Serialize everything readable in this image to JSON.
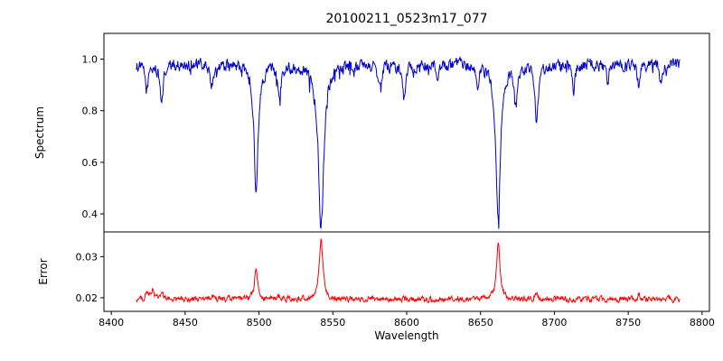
{
  "figure": {
    "title": "20100211_0523m17_077"
  },
  "chart_data": [
    {
      "type": "line",
      "name": "spectrum",
      "ylabel": "Spectrum",
      "color": "#0000cc",
      "xlim": [
        8395,
        8805
      ],
      "ylim": [
        0.33,
        1.1
      ],
      "x_range": [
        8417,
        8785
      ],
      "yticks": [
        0.4,
        0.6,
        0.8,
        1.0
      ],
      "continuum": 0.98,
      "noise_amplitude": 0.04,
      "grid": false,
      "legend": "none",
      "absorption_lines": [
        {
          "center": 8424,
          "depth": 0.1,
          "width": 1.2
        },
        {
          "center": 8434,
          "depth": 0.14,
          "width": 1.4
        },
        {
          "center": 8468,
          "depth": 0.08,
          "width": 1.2
        },
        {
          "center": 8498,
          "depth": 0.5,
          "width": 1.6
        },
        {
          "center": 8514,
          "depth": 0.11,
          "width": 1.2
        },
        {
          "center": 8542,
          "depth": 0.62,
          "width": 2.2
        },
        {
          "center": 8582,
          "depth": 0.09,
          "width": 1.2
        },
        {
          "center": 8598,
          "depth": 0.13,
          "width": 1.3
        },
        {
          "center": 8621,
          "depth": 0.07,
          "width": 1.0
        },
        {
          "center": 8648,
          "depth": 0.07,
          "width": 1.0
        },
        {
          "center": 8662,
          "depth": 0.59,
          "width": 1.9
        },
        {
          "center": 8674,
          "depth": 0.15,
          "width": 1.2
        },
        {
          "center": 8688,
          "depth": 0.21,
          "width": 1.4
        },
        {
          "center": 8713,
          "depth": 0.1,
          "width": 1.1
        },
        {
          "center": 8736,
          "depth": 0.08,
          "width": 1.0
        },
        {
          "center": 8757,
          "depth": 0.08,
          "width": 1.0
        },
        {
          "center": 8772,
          "depth": 0.07,
          "width": 1.0
        }
      ]
    },
    {
      "type": "line",
      "name": "error",
      "ylabel": "Error",
      "xlabel": "Wavelength",
      "color": "#ff0000",
      "xlim": [
        8395,
        8805
      ],
      "ylim": [
        0.0167,
        0.036
      ],
      "x_range": [
        8417,
        8785
      ],
      "xticks": [
        8400,
        8450,
        8500,
        8550,
        8600,
        8650,
        8700,
        8750,
        8800
      ],
      "yticks": [
        0.02,
        0.03
      ],
      "baseline": 0.0196,
      "noise_amplitude": 0.0012,
      "grid": false,
      "legend": "none",
      "peaks": [
        {
          "center": 8424,
          "amplitude": 0.0018,
          "width": 1.1
        },
        {
          "center": 8428,
          "amplitude": 0.0024,
          "width": 1.0
        },
        {
          "center": 8434,
          "amplitude": 0.0015,
          "width": 1.1
        },
        {
          "center": 8468,
          "amplitude": 0.0008,
          "width": 1.0
        },
        {
          "center": 8498,
          "amplitude": 0.0072,
          "width": 1.3
        },
        {
          "center": 8514,
          "amplitude": 0.0009,
          "width": 1.0
        },
        {
          "center": 8542,
          "amplitude": 0.0142,
          "width": 1.5
        },
        {
          "center": 8662,
          "amplitude": 0.0135,
          "width": 1.4
        },
        {
          "center": 8688,
          "amplitude": 0.0017,
          "width": 1.2
        },
        {
          "center": 8757,
          "amplitude": 0.0012,
          "width": 1.0
        }
      ]
    }
  ]
}
